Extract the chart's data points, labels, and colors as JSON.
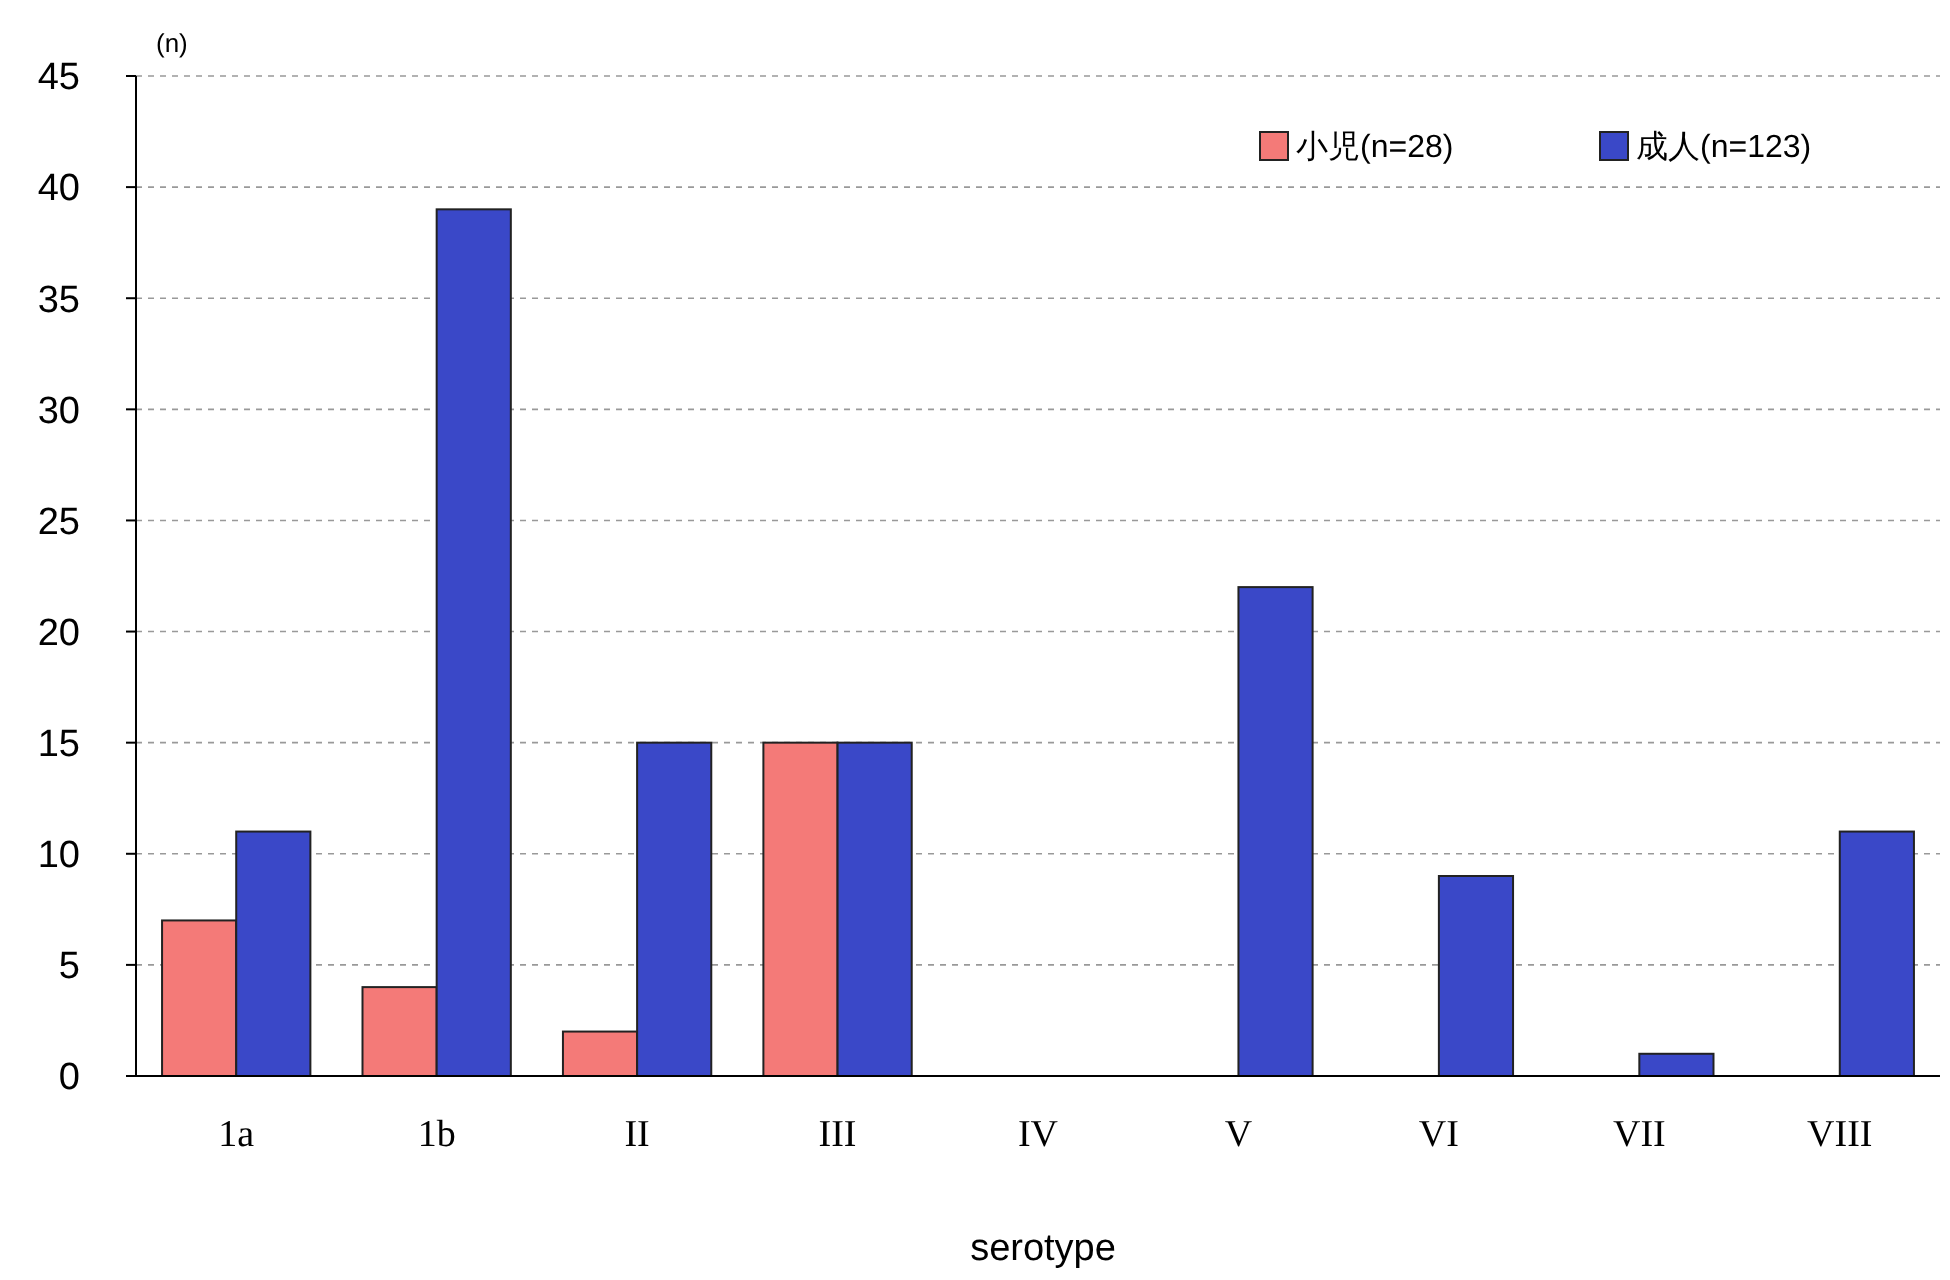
{
  "chart_data": {
    "type": "bar",
    "ylabel": "(n)",
    "xlabel": "serotype",
    "categories": [
      "1a",
      "1b",
      "II",
      "III",
      "IV",
      "V",
      "VI",
      "VII",
      "VIII"
    ],
    "series": [
      {
        "name": "小児(n=28)",
        "color": "#f47a78",
        "values": [
          7,
          4,
          2,
          15,
          0,
          0,
          0,
          0,
          0
        ]
      },
      {
        "name": "成人(n=123)",
        "color": "#3a48c8",
        "values": [
          11,
          39,
          15,
          15,
          0,
          22,
          9,
          1,
          11
        ]
      }
    ],
    "ylim": [
      0,
      45
    ],
    "yticks": [
      0,
      5,
      10,
      15,
      20,
      25,
      30,
      35,
      40,
      45
    ],
    "grid": "y",
    "legend": "top right"
  }
}
